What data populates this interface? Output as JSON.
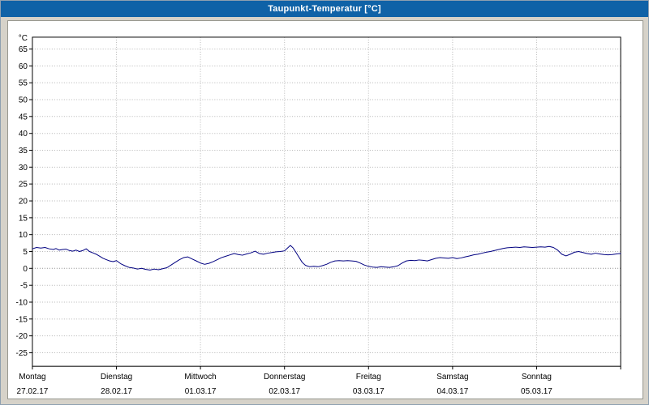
{
  "window": {
    "title": "Taupunkt-Temperatur [°C]"
  },
  "colors": {
    "titlebar": "#0f62a7",
    "title_text": "#ffffff",
    "window_bg": "#d6d2c9",
    "panel_bg": "#ffffff",
    "plot_border": "#000000",
    "grid": "#b4b4b4",
    "zero_grid": "#8a8a8a",
    "axis_text": "#000000",
    "line": "#000080"
  },
  "chart_data": {
    "type": "line",
    "title": "Taupunkt-Temperatur [°C]",
    "xlabel": "",
    "ylabel": "°C",
    "ylim": [
      -29,
      68.5
    ],
    "xlim": [
      0,
      7
    ],
    "y_ticks": [
      65,
      60,
      55,
      50,
      45,
      40,
      35,
      30,
      25,
      20,
      15,
      10,
      5,
      0,
      -5,
      -10,
      -15,
      -20,
      -25
    ],
    "grid": "dotted",
    "legend": "none",
    "x_days": [
      {
        "weekday": "Montag",
        "date": "27.02.17"
      },
      {
        "weekday": "Dienstag",
        "date": "28.02.17"
      },
      {
        "weekday": "Mittwoch",
        "date": "01.03.17"
      },
      {
        "weekday": "Donnerstag",
        "date": "02.03.17"
      },
      {
        "weekday": "Freitag",
        "date": "03.03.17"
      },
      {
        "weekday": "Samstag",
        "date": "04.03.17"
      },
      {
        "weekday": "Sonntag",
        "date": "05.03.17"
      }
    ],
    "series": [
      {
        "name": "Taupunkt-Temperatur",
        "color": "#000080",
        "points": [
          [
            0,
            5.8
          ],
          [
            0.05,
            6.2
          ],
          [
            0.1,
            6
          ],
          [
            0.15,
            6.2
          ],
          [
            0.2,
            5.8
          ],
          [
            0.25,
            5.6
          ],
          [
            0.28,
            5.9
          ],
          [
            0.32,
            5.4
          ],
          [
            0.36,
            5.6
          ],
          [
            0.4,
            5.7
          ],
          [
            0.44,
            5.3
          ],
          [
            0.48,
            5.1
          ],
          [
            0.52,
            5.4
          ],
          [
            0.56,
            5
          ],
          [
            0.6,
            5.3
          ],
          [
            0.64,
            5.8
          ],
          [
            0.68,
            5
          ],
          [
            0.72,
            4.6
          ],
          [
            0.76,
            4.2
          ],
          [
            0.8,
            3.6
          ],
          [
            0.84,
            3
          ],
          [
            0.88,
            2.6
          ],
          [
            0.92,
            2.2
          ],
          [
            0.96,
            2
          ],
          [
            1,
            2.3
          ],
          [
            1.05,
            1.4
          ],
          [
            1.1,
            0.8
          ],
          [
            1.15,
            0.3
          ],
          [
            1.2,
            0.1
          ],
          [
            1.25,
            -0.2
          ],
          [
            1.3,
            0
          ],
          [
            1.35,
            -0.3
          ],
          [
            1.4,
            -0.5
          ],
          [
            1.45,
            -0.2
          ],
          [
            1.5,
            -0.4
          ],
          [
            1.55,
            -0.1
          ],
          [
            1.6,
            0.2
          ],
          [
            1.65,
            1
          ],
          [
            1.7,
            1.8
          ],
          [
            1.75,
            2.6
          ],
          [
            1.8,
            3.2
          ],
          [
            1.85,
            3.4
          ],
          [
            1.9,
            2.8
          ],
          [
            1.95,
            2.2
          ],
          [
            2,
            1.6
          ],
          [
            2.05,
            1.2
          ],
          [
            2.1,
            1.5
          ],
          [
            2.15,
            2
          ],
          [
            2.2,
            2.6
          ],
          [
            2.25,
            3.2
          ],
          [
            2.3,
            3.6
          ],
          [
            2.35,
            4
          ],
          [
            2.4,
            4.4
          ],
          [
            2.45,
            4.1
          ],
          [
            2.5,
            3.9
          ],
          [
            2.55,
            4.3
          ],
          [
            2.6,
            4.6
          ],
          [
            2.65,
            5.1
          ],
          [
            2.7,
            4.4
          ],
          [
            2.75,
            4.2
          ],
          [
            2.8,
            4.5
          ],
          [
            2.85,
            4.7
          ],
          [
            2.9,
            4.9
          ],
          [
            2.95,
            5
          ],
          [
            3,
            5.2
          ],
          [
            3.04,
            6.1
          ],
          [
            3.07,
            6.8
          ],
          [
            3.1,
            6.1
          ],
          [
            3.13,
            5
          ],
          [
            3.17,
            3.4
          ],
          [
            3.21,
            1.8
          ],
          [
            3.25,
            0.9
          ],
          [
            3.3,
            0.5
          ],
          [
            3.35,
            0.6
          ],
          [
            3.4,
            0.5
          ],
          [
            3.45,
            0.8
          ],
          [
            3.5,
            1.2
          ],
          [
            3.55,
            1.8
          ],
          [
            3.6,
            2.2
          ],
          [
            3.65,
            2.3
          ],
          [
            3.7,
            2.2
          ],
          [
            3.75,
            2.3
          ],
          [
            3.8,
            2.2
          ],
          [
            3.85,
            2.1
          ],
          [
            3.9,
            1.6
          ],
          [
            3.95,
            1
          ],
          [
            4,
            0.6
          ],
          [
            4.05,
            0.4
          ],
          [
            4.1,
            0.3
          ],
          [
            4.15,
            0.5
          ],
          [
            4.2,
            0.4
          ],
          [
            4.25,
            0.3
          ],
          [
            4.3,
            0.5
          ],
          [
            4.35,
            0.8
          ],
          [
            4.4,
            1.6
          ],
          [
            4.45,
            2.2
          ],
          [
            4.5,
            2.4
          ],
          [
            4.55,
            2.3
          ],
          [
            4.6,
            2.5
          ],
          [
            4.65,
            2.4
          ],
          [
            4.7,
            2.2
          ],
          [
            4.75,
            2.6
          ],
          [
            4.8,
            3
          ],
          [
            4.85,
            3.2
          ],
          [
            4.9,
            3.1
          ],
          [
            4.95,
            3
          ],
          [
            5,
            3.2
          ],
          [
            5.05,
            2.9
          ],
          [
            5.1,
            3.1
          ],
          [
            5.15,
            3.4
          ],
          [
            5.2,
            3.7
          ],
          [
            5.25,
            4
          ],
          [
            5.3,
            4.2
          ],
          [
            5.35,
            4.5
          ],
          [
            5.4,
            4.8
          ],
          [
            5.45,
            5
          ],
          [
            5.5,
            5.3
          ],
          [
            5.55,
            5.6
          ],
          [
            5.6,
            5.9
          ],
          [
            5.65,
            6.1
          ],
          [
            5.7,
            6.2
          ],
          [
            5.75,
            6.3
          ],
          [
            5.8,
            6.2
          ],
          [
            5.85,
            6.4
          ],
          [
            5.9,
            6.3
          ],
          [
            5.95,
            6.2
          ],
          [
            6,
            6.3
          ],
          [
            6.05,
            6.4
          ],
          [
            6.1,
            6.3
          ],
          [
            6.15,
            6.5
          ],
          [
            6.2,
            6.2
          ],
          [
            6.25,
            5.4
          ],
          [
            6.3,
            4.2
          ],
          [
            6.35,
            3.7
          ],
          [
            6.4,
            4.2
          ],
          [
            6.45,
            4.8
          ],
          [
            6.5,
            5
          ],
          [
            6.55,
            4.7
          ],
          [
            6.6,
            4.4
          ],
          [
            6.65,
            4.2
          ],
          [
            6.7,
            4.5
          ],
          [
            6.75,
            4.3
          ],
          [
            6.8,
            4.1
          ],
          [
            6.85,
            4
          ],
          [
            6.9,
            4.1
          ],
          [
            6.95,
            4.3
          ],
          [
            7,
            4.4
          ]
        ]
      }
    ]
  }
}
